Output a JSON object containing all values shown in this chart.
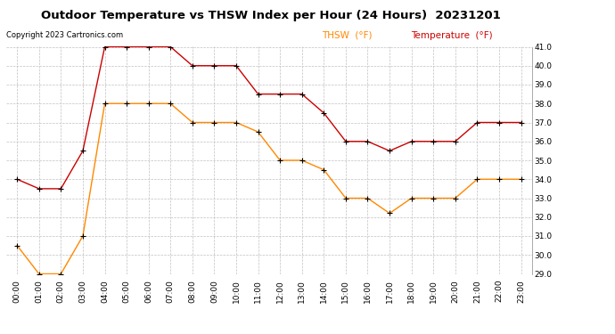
{
  "title": "Outdoor Temperature vs THSW Index per Hour (24 Hours)  20231201",
  "copyright": "Copyright 2023 Cartronics.com",
  "legend_thsw": "THSW  (°F)",
  "legend_temp": "Temperature  (°F)",
  "hours": [
    "00:00",
    "01:00",
    "02:00",
    "03:00",
    "04:00",
    "05:00",
    "06:00",
    "07:00",
    "08:00",
    "09:00",
    "10:00",
    "11:00",
    "12:00",
    "13:00",
    "14:00",
    "15:00",
    "16:00",
    "17:00",
    "18:00",
    "19:00",
    "20:00",
    "21:00",
    "22:00",
    "23:00"
  ],
  "temperature": [
    34.0,
    33.5,
    33.5,
    35.5,
    41.0,
    41.0,
    41.0,
    41.0,
    40.0,
    40.0,
    40.0,
    38.5,
    38.5,
    38.5,
    37.5,
    36.0,
    36.0,
    35.5,
    36.0,
    36.0,
    36.0,
    37.0,
    37.0,
    37.0
  ],
  "thsw": [
    30.5,
    29.0,
    29.0,
    31.0,
    38.0,
    38.0,
    38.0,
    38.0,
    37.0,
    37.0,
    37.0,
    36.5,
    35.0,
    35.0,
    34.5,
    33.0,
    33.0,
    32.2,
    33.0,
    33.0,
    33.0,
    34.0,
    34.0,
    34.0
  ],
  "temp_color": "#cc0000",
  "thsw_color": "#ff8800",
  "marker_color": "#000000",
  "ylim_min": 29.0,
  "ylim_max": 41.0,
  "yticks": [
    29.0,
    30.0,
    31.0,
    32.0,
    33.0,
    34.0,
    35.0,
    36.0,
    37.0,
    38.0,
    39.0,
    40.0,
    41.0
  ],
  "background_color": "#ffffff",
  "grid_color": "#c0c0c0",
  "title_fontsize": 9.5,
  "copyright_fontsize": 6,
  "legend_fontsize": 7.5,
  "tick_fontsize": 6.5,
  "linewidth": 1.0,
  "marker_size": 4
}
